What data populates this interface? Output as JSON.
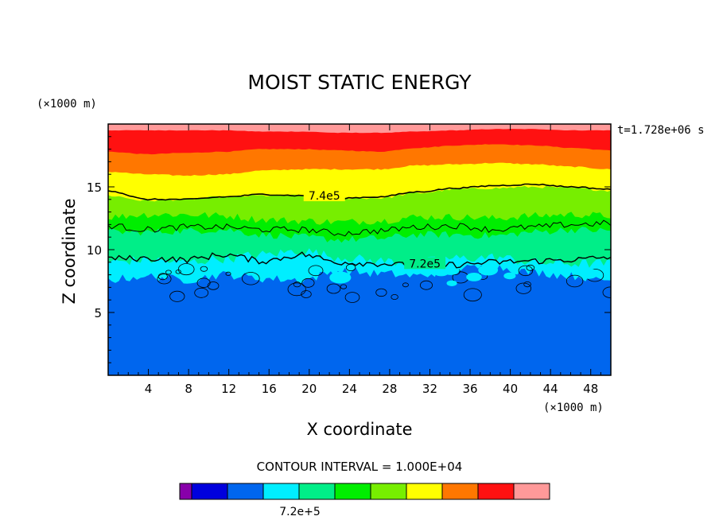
{
  "chart_data": {
    "type": "heatmap",
    "title": "MOIST STATIC ENERGY",
    "time_label": "t=1.728e+06 s",
    "xlabel": "X coordinate",
    "ylabel": "Z coordinate",
    "x_unit": "(×1000 m)",
    "y_unit": "(×1000 m)",
    "xlim": [
      0,
      50
    ],
    "ylim": [
      0,
      20
    ],
    "x_ticks": [
      4,
      8,
      12,
      16,
      20,
      24,
      28,
      32,
      36,
      40,
      44,
      48
    ],
    "y_ticks": [
      5,
      10,
      15
    ],
    "contour_interval_text": "CONTOUR INTERVAL = 1.000E+04",
    "colorbar": {
      "colors": [
        "#8800aa",
        "#0000dd",
        "#0066ee",
        "#00eeff",
        "#00ee88",
        "#00ee00",
        "#77ee00",
        "#ffff00",
        "#ff7700",
        "#ff1111",
        "#ff9999"
      ],
      "label": "7.2e+5"
    },
    "contour_labels": [
      "7.4e5",
      "7.2e5"
    ],
    "bands": [
      {
        "color": "#0066ee",
        "z_top": [
          7.6,
          7.9,
          7.6,
          8.0,
          7.7,
          7.6,
          8.3,
          8.1,
          7.9,
          8.5,
          8.6,
          8.2,
          7.9,
          7.6
        ],
        "noise": 0.35
      },
      {
        "color": "#00eeff",
        "z_top": [
          9.0,
          9.2,
          9.0,
          9.3,
          9.6,
          9.9,
          9.4,
          9.1,
          9.0,
          9.3,
          9.4,
          9.0,
          8.9,
          8.9
        ],
        "noise": 0.4
      },
      {
        "color": "#00ee88",
        "z_top": [
          11.4,
          11.4,
          11.5,
          11.6,
          11.2,
          11.0,
          10.8,
          10.9,
          11.2,
          11.2,
          11.1,
          11.4,
          11.6,
          11.5
        ],
        "noise": 0.3
      },
      {
        "color": "#00ee00",
        "z_top": [
          12.6,
          12.8,
          12.8,
          12.7,
          12.4,
          12.3,
          12.2,
          12.3,
          12.6,
          12.6,
          12.5,
          12.7,
          12.8,
          12.7
        ],
        "noise": 0.3
      },
      {
        "color": "#77ee00",
        "z_top": [
          14.3,
          13.9,
          14.0,
          14.2,
          14.3,
          14.3,
          14.1,
          14.1,
          14.5,
          14.8,
          14.9,
          15.0,
          14.9,
          14.7
        ],
        "noise": 0.1
      },
      {
        "color": "#ffff00",
        "z_top": [
          16.2,
          16.0,
          15.9,
          16.0,
          16.3,
          16.4,
          16.4,
          16.4,
          16.7,
          16.8,
          16.9,
          16.8,
          16.6,
          16.4
        ],
        "noise": 0.05
      },
      {
        "color": "#ff7700",
        "z_top": [
          17.8,
          17.6,
          17.7,
          17.8,
          18.0,
          18.0,
          17.9,
          17.8,
          18.1,
          18.3,
          18.4,
          18.3,
          18.1,
          17.9
        ],
        "noise": 0.03
      },
      {
        "color": "#ff1111",
        "z_top": [
          19.5,
          19.5,
          19.5,
          19.5,
          19.4,
          19.4,
          19.3,
          19.3,
          19.4,
          19.5,
          19.6,
          19.6,
          19.5,
          19.5
        ],
        "noise": 0.02
      },
      {
        "color": "#ff9999",
        "z_top": [
          20,
          20,
          20,
          20,
          20,
          20,
          20,
          20,
          20,
          20,
          20,
          20,
          20,
          20
        ],
        "noise": 0
      }
    ],
    "contours": [
      {
        "value": "7.4e5",
        "z": [
          14.7,
          14.0,
          14.0,
          14.2,
          14.4,
          14.3,
          14.1,
          14.2,
          14.6,
          14.9,
          15.1,
          15.2,
          15.0,
          14.8
        ],
        "width": 1.6,
        "noise": 0.05
      },
      {
        "value": "upper-contour",
        "z": [
          11.9,
          11.6,
          11.8,
          11.8,
          11.6,
          11.6,
          11.3,
          11.5,
          11.8,
          11.9,
          11.6,
          11.8,
          12.0,
          12.1
        ],
        "width": 1,
        "noise": 0.25
      },
      {
        "value": "7.2e5",
        "z": [
          9.3,
          9.3,
          9.2,
          9.6,
          9.1,
          9.6,
          9.0,
          8.9,
          8.7,
          8.8,
          9.0,
          9.1,
          9.2,
          9.4
        ],
        "width": 1.4,
        "noise": 0.25
      }
    ]
  }
}
